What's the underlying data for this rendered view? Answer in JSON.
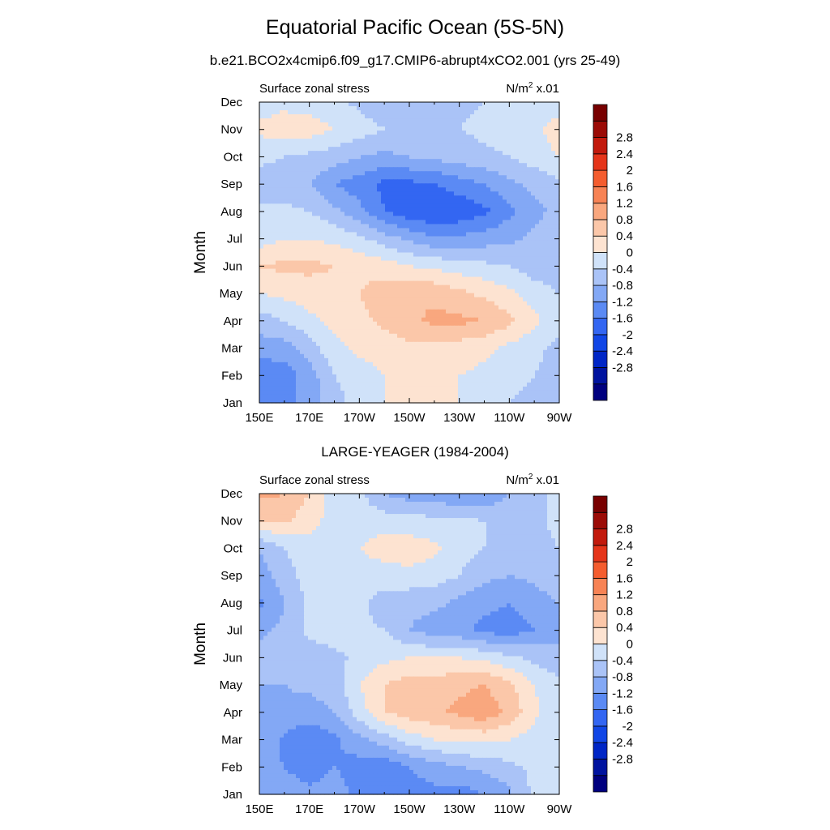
{
  "title": "Equatorial Pacific Ocean (5S-5N)",
  "subtitle": "b.e21.BCO2x4cmip6.f09_g17.CMIP6-abrupt4xCO2.001 (yrs 25-49)",
  "colors": {
    "levels": [
      "#00007f",
      "#00139f",
      "#0026c6",
      "#1146e6",
      "#3366f2",
      "#5b8af4",
      "#83a8f5",
      "#aac3f7",
      "#d0e2f9",
      "#fde3d1",
      "#fbc7a9",
      "#f9a77e",
      "#f78355",
      "#f45d2f",
      "#e5351a",
      "#c21a0d",
      "#9b0b06",
      "#780000"
    ]
  },
  "chart_data": [
    {
      "type": "heatmap",
      "panel_title": "",
      "left_label": "Surface zonal stress",
      "right_label": "N/m",
      "right_label_sup": "2",
      "right_label_tail": " x.01",
      "xlabel": "",
      "ylabel": "Month",
      "x_ticks": [
        "150E",
        "170E",
        "170W",
        "150W",
        "130W",
        "110W",
        "90W"
      ],
      "y_ticks": [
        "Jan",
        "Feb",
        "Mar",
        "Apr",
        "May",
        "Jun",
        "Jul",
        "Aug",
        "Sep",
        "Oct",
        "Nov",
        "Dec"
      ],
      "colorbar_labels": [
        "-2.8",
        "-2.4",
        "-2",
        "-1.6",
        "-1.2",
        "-0.8",
        "-0.4",
        "0",
        "0.4",
        "0.8",
        "1.2",
        "1.6",
        "2",
        "2.4",
        "2.8"
      ],
      "levels": [
        -3.2,
        -2.8,
        -2.4,
        -2.0,
        -1.6,
        -1.2,
        -0.8,
        -0.4,
        0,
        0.4,
        0.8,
        1.2,
        1.6,
        2.0,
        2.4,
        2.8,
        3.2
      ],
      "lon": [
        150,
        160,
        170,
        180,
        190,
        200,
        210,
        220,
        230,
        240,
        250,
        260,
        270
      ],
      "month": [
        "Jan",
        "Feb",
        "Mar",
        "Apr",
        "May",
        "Jun",
        "Jul",
        "Aug",
        "Sep",
        "Oct",
        "Nov",
        "Dec"
      ],
      "values": [
        [
          -1.0,
          -1.0,
          -0.6,
          -0.2,
          0.2,
          0.4,
          0.4,
          0.4,
          0.4,
          0.2,
          0.0,
          -0.2,
          -0.2
        ],
        [
          -1.1,
          -1.0,
          -0.6,
          0.0,
          0.2,
          0.4,
          0.5,
          0.5,
          0.4,
          0.3,
          0.2,
          0.0,
          -0.2
        ],
        [
          -0.6,
          -0.6,
          -0.2,
          0.3,
          0.5,
          0.6,
          0.7,
          0.7,
          0.6,
          0.5,
          0.3,
          0.1,
          -0.1
        ],
        [
          -0.2,
          0.0,
          0.3,
          0.5,
          0.7,
          0.9,
          1.1,
          1.3,
          1.3,
          1.2,
          0.9,
          0.5,
          0.1
        ],
        [
          0.4,
          0.5,
          0.6,
          0.7,
          0.8,
          1.0,
          1.2,
          1.1,
          0.9,
          0.7,
          0.5,
          0.2,
          0.0
        ],
        [
          0.8,
          0.9,
          0.9,
          0.8,
          0.7,
          0.6,
          0.4,
          0.3,
          0.2,
          0.1,
          0.0,
          -0.2,
          -0.3
        ],
        [
          0.2,
          0.4,
          0.4,
          0.3,
          0.1,
          -0.2,
          -0.5,
          -0.7,
          -0.7,
          -0.6,
          -0.5,
          -0.3,
          -0.2
        ],
        [
          0.1,
          0.1,
          0.0,
          -0.3,
          -0.7,
          -1.2,
          -1.5,
          -1.6,
          -1.5,
          -1.3,
          -0.9,
          -0.5,
          -0.3
        ],
        [
          -0.2,
          -0.2,
          -0.4,
          -0.8,
          -1.0,
          -1.3,
          -1.3,
          -1.2,
          -1.0,
          -0.8,
          -0.5,
          -0.3,
          -0.1
        ],
        [
          0.1,
          0.0,
          -0.1,
          -0.2,
          -0.4,
          -0.5,
          -0.4,
          -0.3,
          -0.2,
          -0.1,
          0.0,
          0.2,
          0.4
        ],
        [
          0.5,
          0.6,
          0.6,
          0.4,
          0.2,
          0.0,
          -0.1,
          -0.1,
          0.0,
          0.1,
          0.2,
          0.3,
          0.6
        ],
        [
          0.2,
          0.3,
          0.2,
          0.1,
          -0.1,
          -0.3,
          -0.3,
          -0.2,
          -0.1,
          0.0,
          0.1,
          0.1,
          0.2
        ]
      ]
    },
    {
      "type": "heatmap",
      "panel_title": "LARGE-YEAGER (1984-2004)",
      "left_label": "Surface zonal stress",
      "right_label": "N/m",
      "right_label_sup": "2",
      "right_label_tail": " x.01",
      "xlabel": "",
      "ylabel": "Month",
      "x_ticks": [
        "150E",
        "170E",
        "170W",
        "150W",
        "130W",
        "110W",
        "90W"
      ],
      "y_ticks": [
        "Jan",
        "Feb",
        "Mar",
        "Apr",
        "May",
        "Jun",
        "Jul",
        "Aug",
        "Sep",
        "Oct",
        "Nov",
        "Dec"
      ],
      "colorbar_labels": [
        "-2.8",
        "-2.4",
        "-2",
        "-1.6",
        "-1.2",
        "-0.8",
        "-0.4",
        "0",
        "0.4",
        "0.8",
        "1.2",
        "1.6",
        "2",
        "2.4",
        "2.8"
      ],
      "levels": [
        -3.2,
        -2.8,
        -2.4,
        -2.0,
        -1.6,
        -1.2,
        -0.8,
        -0.4,
        0,
        0.4,
        0.8,
        1.2,
        1.6,
        2.0,
        2.4,
        2.8,
        3.2
      ],
      "lon": [
        150,
        160,
        170,
        180,
        190,
        200,
        210,
        220,
        230,
        240,
        250,
        260,
        270
      ],
      "month": [
        "Jan",
        "Feb",
        "Mar",
        "Apr",
        "May",
        "Jun",
        "Jul",
        "Aug",
        "Sep",
        "Oct",
        "Nov",
        "Dec"
      ],
      "values": [
        [
          -0.6,
          -0.6,
          -0.7,
          -0.6,
          -0.9,
          -1.1,
          -1.0,
          -0.9,
          -1.0,
          -0.8,
          -0.5,
          0.1,
          0.2
        ],
        [
          -0.7,
          -0.8,
          -1.0,
          -0.8,
          -1.0,
          -1.1,
          -0.8,
          -0.6,
          -0.4,
          -0.3,
          -0.1,
          0.1,
          0.2
        ],
        [
          -0.5,
          -0.9,
          -1.1,
          -0.9,
          -0.5,
          -0.2,
          0.2,
          0.4,
          0.5,
          0.5,
          0.4,
          0.2,
          0.1
        ],
        [
          -0.4,
          -0.5,
          -0.6,
          -0.4,
          0.2,
          0.8,
          1.0,
          1.1,
          1.3,
          1.5,
          1.1,
          0.5,
          0.1
        ],
        [
          -0.4,
          -0.4,
          -0.3,
          -0.2,
          0.4,
          0.8,
          1.0,
          1.0,
          1.1,
          1.2,
          0.9,
          0.4,
          0.1
        ],
        [
          -0.2,
          -0.3,
          -0.2,
          -0.1,
          0.1,
          0.3,
          0.4,
          0.4,
          0.4,
          0.3,
          0.1,
          -0.1,
          -0.3
        ],
        [
          -0.5,
          -0.3,
          0.1,
          0.2,
          0.1,
          0.0,
          -0.4,
          -0.6,
          -0.7,
          -0.9,
          -1.0,
          -0.8,
          -0.5
        ],
        [
          -0.9,
          -0.4,
          0.1,
          0.2,
          0.1,
          -0.2,
          -0.3,
          -0.3,
          -0.5,
          -0.7,
          -0.8,
          -0.6,
          -0.4
        ],
        [
          -0.6,
          -0.2,
          0.2,
          0.2,
          0.2,
          0.2,
          0.3,
          0.2,
          0.0,
          -0.3,
          -0.4,
          -0.3,
          -0.1
        ],
        [
          -0.4,
          0.0,
          0.3,
          0.3,
          0.4,
          0.6,
          0.6,
          0.5,
          0.2,
          0.0,
          -0.2,
          -0.1,
          0.0
        ],
        [
          0.8,
          0.9,
          0.5,
          0.3,
          0.2,
          0.2,
          0.2,
          0.1,
          0.1,
          0.0,
          -0.2,
          -0.1,
          0.1
        ],
        [
          1.3,
          1.2,
          0.8,
          0.1,
          0.1,
          -0.4,
          -0.6,
          -0.6,
          -0.8,
          -0.7,
          -0.4,
          -0.1,
          0.1
        ]
      ]
    }
  ]
}
